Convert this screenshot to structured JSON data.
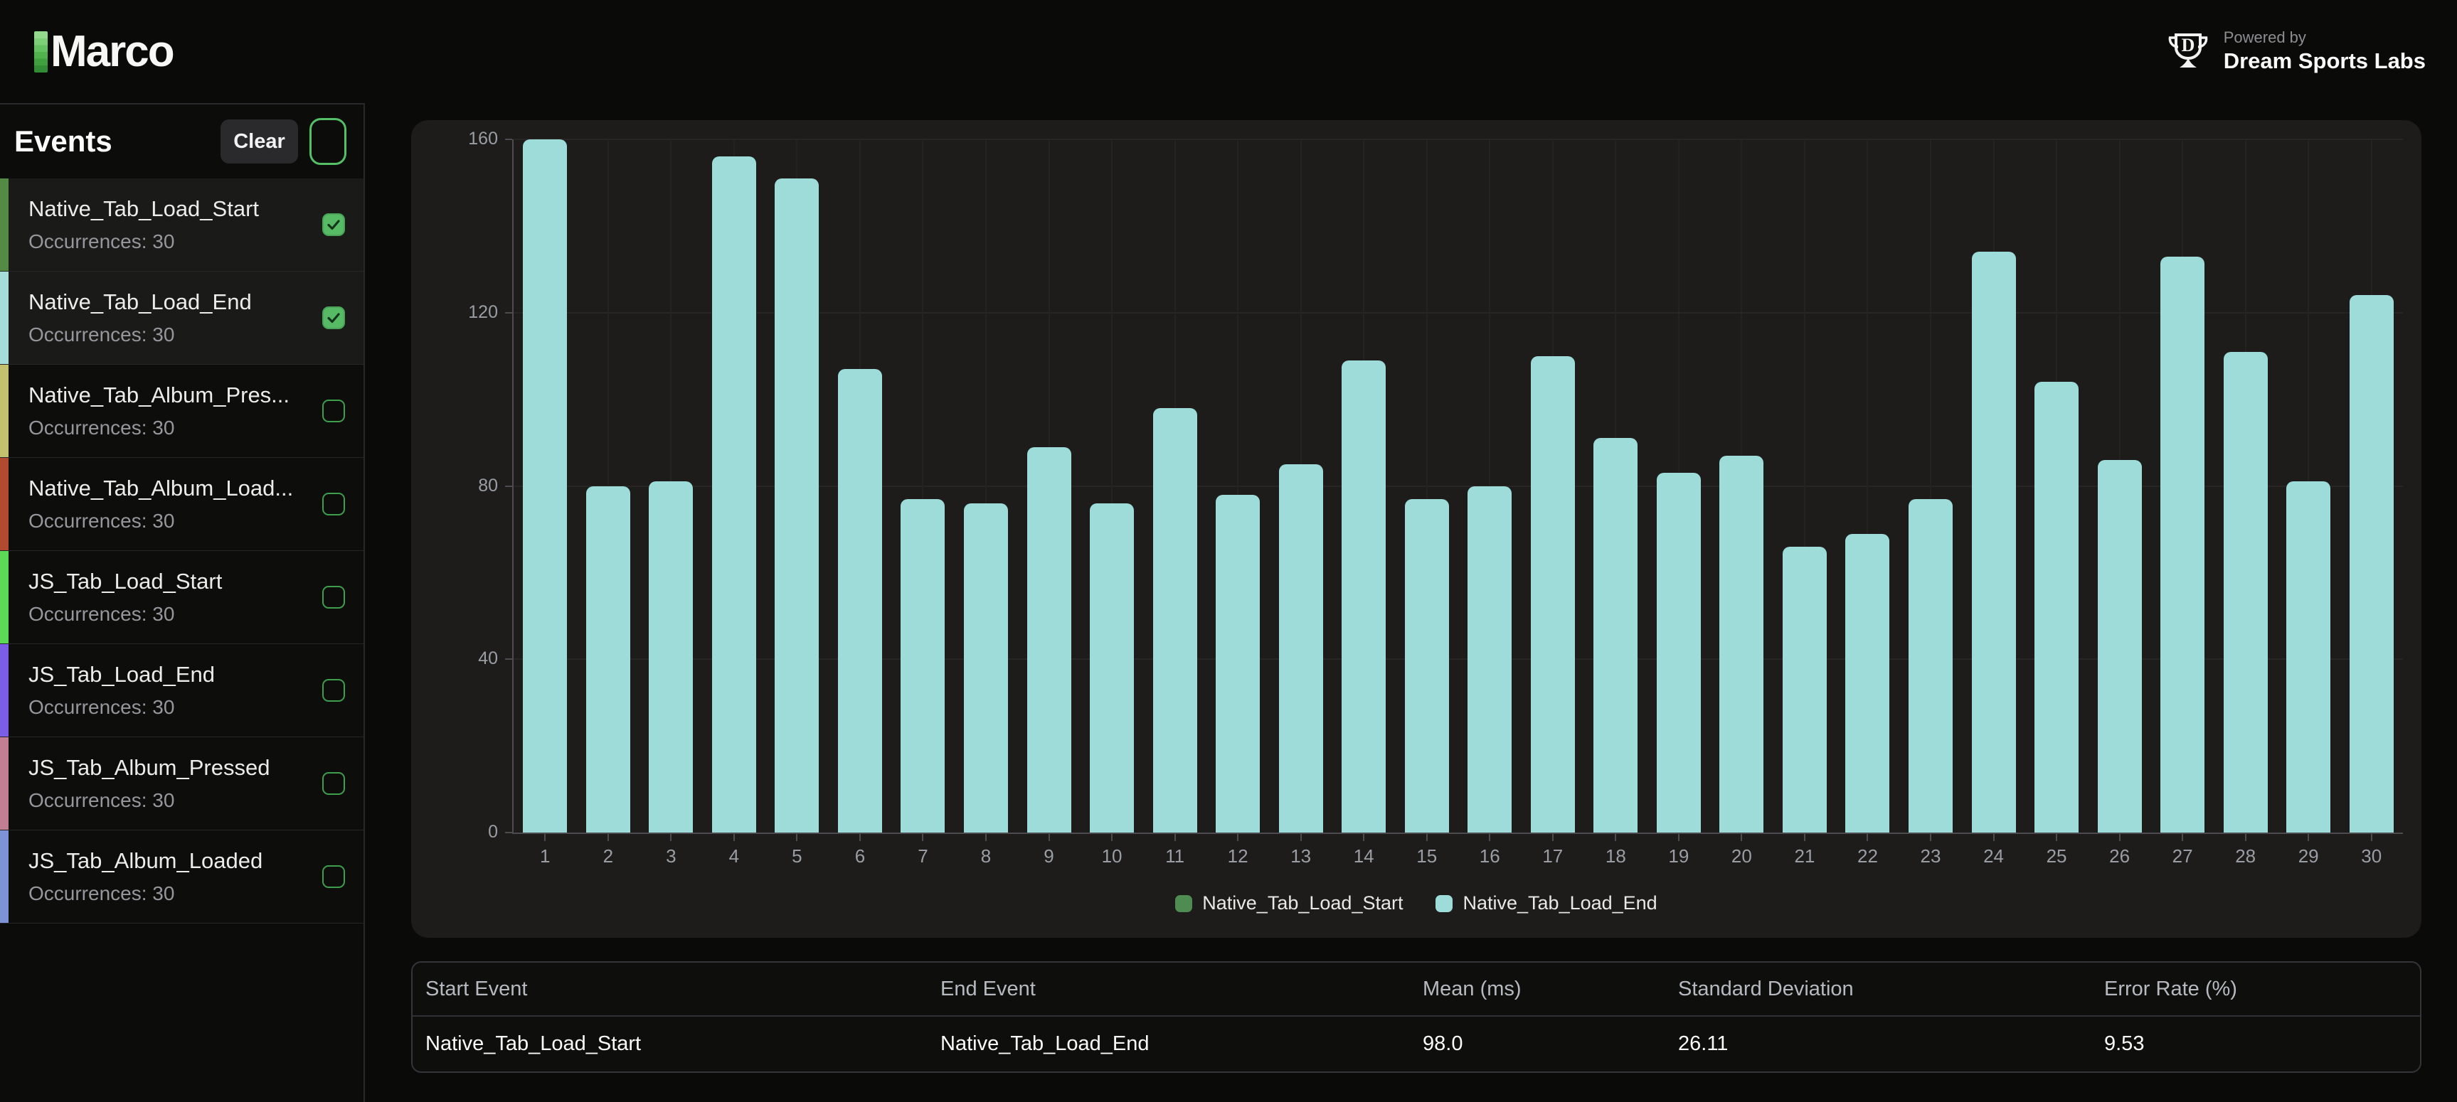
{
  "header": {
    "logo_text": "Marco",
    "powered_by": "Powered by",
    "brand_name": "Dream Sports Labs"
  },
  "sidebar": {
    "title": "Events",
    "clear_label": "Clear",
    "items": [
      {
        "name": "Native_Tab_Load_Start",
        "occurrences_text": "Occurrences: 30",
        "stripe_color": "#538b45",
        "checked": true,
        "selected": true
      },
      {
        "name": "Native_Tab_Load_End",
        "occurrences_text": "Occurrences: 30",
        "stripe_color": "#a5ddd9",
        "checked": true,
        "selected": true
      },
      {
        "name": "Native_Tab_Album_Pres...",
        "occurrences_text": "Occurrences: 30",
        "stripe_color": "#c3c06e",
        "checked": false,
        "selected": false
      },
      {
        "name": "Native_Tab_Album_Load...",
        "occurrences_text": "Occurrences: 30",
        "stripe_color": "#b24a2f",
        "checked": false,
        "selected": false
      },
      {
        "name": "JS_Tab_Load_Start",
        "occurrences_text": "Occurrences: 30",
        "stripe_color": "#5cd956",
        "checked": false,
        "selected": false
      },
      {
        "name": "JS_Tab_Load_End",
        "occurrences_text": "Occurrences: 30",
        "stripe_color": "#7c5de8",
        "checked": false,
        "selected": false
      },
      {
        "name": "JS_Tab_Album_Pressed",
        "occurrences_text": "Occurrences: 30",
        "stripe_color": "#c27e92",
        "checked": false,
        "selected": false
      },
      {
        "name": "JS_Tab_Album_Loaded",
        "occurrences_text": "Occurrences: 30",
        "stripe_color": "#7e93d6",
        "checked": false,
        "selected": false
      }
    ]
  },
  "chart_data": {
    "type": "bar",
    "title": "",
    "xlabel": "",
    "ylabel": "",
    "x": [
      1,
      2,
      3,
      4,
      5,
      6,
      7,
      8,
      9,
      10,
      11,
      12,
      13,
      14,
      15,
      16,
      17,
      18,
      19,
      20,
      21,
      22,
      23,
      24,
      25,
      26,
      27,
      28,
      29,
      30
    ],
    "series": [
      {
        "name": "Native_Tab_Load_Start",
        "color": "#4e8c52",
        "values": [
          0,
          0,
          0,
          0,
          0,
          0,
          0,
          0,
          0,
          0,
          0,
          0,
          0,
          0,
          0,
          0,
          0,
          0,
          0,
          0,
          0,
          0,
          0,
          0,
          0,
          0,
          0,
          0,
          0,
          0
        ]
      },
      {
        "name": "Native_Tab_Load_End",
        "color": "#9edcd9",
        "values": [
          160,
          80,
          81,
          156,
          151,
          107,
          77,
          76,
          89,
          76,
          98,
          78,
          85,
          109,
          77,
          80,
          110,
          91,
          83,
          87,
          66,
          69,
          77,
          134,
          104,
          86,
          133,
          111,
          81,
          124
        ]
      }
    ],
    "ylim": [
      0,
      160
    ],
    "yticks": [
      0,
      40,
      80,
      120,
      160
    ],
    "grid": true,
    "legend_position": "bottom"
  },
  "table": {
    "headers": [
      "Start Event",
      "End Event",
      "Mean (ms)",
      "Standard Deviation",
      "Error Rate (%)"
    ],
    "rows": [
      [
        "Native_Tab_Load_Start",
        "Native_Tab_Load_End",
        "98.0",
        "26.11",
        "9.53"
      ]
    ]
  },
  "colors": {
    "page_bg": "#0a0a09",
    "card_bg": "#1d1c1b",
    "bar_fill": "#9edcd9",
    "legend_start": "#4e8c52",
    "checkbox_green": "#57bb66",
    "accent_border_green": "#55bf66"
  }
}
